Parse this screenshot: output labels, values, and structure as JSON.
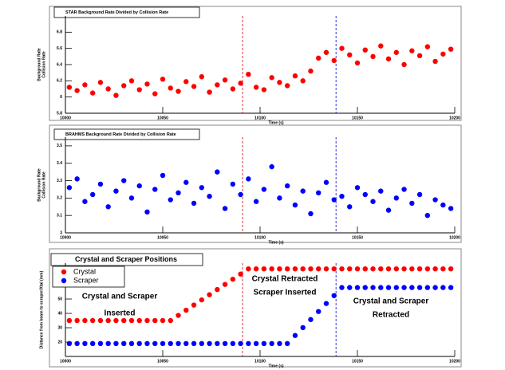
{
  "chart_data": [
    {
      "type": "scatter",
      "title": "STAR Background Rate Divided by Collision Rate",
      "ylabel": [
        "Background Rate",
        "Collision Rate"
      ],
      "xlabel": "Time (s)",
      "xlim": [
        10000,
        10200
      ],
      "xticks": [
        10000,
        10050,
        10100,
        10150,
        10200
      ],
      "ylim": [
        5.8,
        7
      ],
      "yticks": [
        5.8,
        6,
        6.2,
        6.4,
        6.6,
        6.8
      ],
      "vlines": [
        {
          "value": 10091,
          "color": "#e00000"
        },
        {
          "value": 10139,
          "color": "#0000e0"
        }
      ],
      "x": [
        10002,
        10006,
        10010,
        10014,
        10018,
        10022,
        10026,
        10030,
        10034,
        10038,
        10042,
        10046,
        10050,
        10054,
        10058,
        10062,
        10066,
        10070,
        10074,
        10078,
        10082,
        10086,
        10090,
        10094,
        10098,
        10102,
        10106,
        10110,
        10114,
        10118,
        10122,
        10126,
        10130,
        10134,
        10138,
        10142,
        10146,
        10150,
        10154,
        10158,
        10162,
        10166,
        10170,
        10174,
        10178,
        10182,
        10186,
        10190,
        10194,
        10198
      ],
      "series": [
        {
          "color": "#ff0000",
          "values": [
            6.12,
            6.08,
            6.15,
            6.05,
            6.18,
            6.1,
            6.02,
            6.14,
            6.2,
            6.09,
            6.16,
            6.04,
            6.22,
            6.11,
            6.07,
            6.19,
            6.13,
            6.25,
            6.06,
            6.15,
            6.21,
            6.1,
            6.17,
            6.28,
            6.12,
            6.09,
            6.24,
            6.18,
            6.14,
            6.26,
            6.2,
            6.32,
            6.48,
            6.55,
            6.45,
            6.6,
            6.52,
            6.42,
            6.58,
            6.5,
            6.63,
            6.47,
            6.55,
            6.4,
            6.57,
            6.51,
            6.62,
            6.44,
            6.53,
            6.59
          ]
        }
      ]
    },
    {
      "type": "scatter",
      "title": "BRAHMS Background Rate Divided by Collision Rate",
      "ylabel": [
        "Background Rate",
        "Collision Rate"
      ],
      "xlabel": "Time (s)",
      "xlim": [
        10000,
        10200
      ],
      "xticks": [
        10000,
        10050,
        10100,
        10150,
        10200
      ],
      "ylim": [
        3,
        3.55
      ],
      "yticks": [
        3,
        3.1,
        3.2,
        3.3,
        3.4,
        3.5
      ],
      "vlines": [
        {
          "value": 10091,
          "color": "#e00000"
        },
        {
          "value": 10139,
          "color": "#0000e0"
        }
      ],
      "x": [
        10002,
        10006,
        10010,
        10014,
        10018,
        10022,
        10026,
        10030,
        10034,
        10038,
        10042,
        10046,
        10050,
        10054,
        10058,
        10062,
        10066,
        10070,
        10074,
        10078,
        10082,
        10086,
        10090,
        10094,
        10098,
        10102,
        10106,
        10110,
        10114,
        10118,
        10122,
        10126,
        10130,
        10134,
        10138,
        10142,
        10146,
        10150,
        10154,
        10158,
        10162,
        10166,
        10170,
        10174,
        10178,
        10182,
        10186,
        10190,
        10194,
        10198
      ],
      "series": [
        {
          "color": "#0000ff",
          "values": [
            3.26,
            3.31,
            3.18,
            3.22,
            3.28,
            3.15,
            3.24,
            3.3,
            3.2,
            3.27,
            3.12,
            3.25,
            3.33,
            3.19,
            3.23,
            3.29,
            3.17,
            3.26,
            3.21,
            3.35,
            3.14,
            3.28,
            3.22,
            3.31,
            3.18,
            3.25,
            3.38,
            3.2,
            3.27,
            3.16,
            3.24,
            3.11,
            3.23,
            3.29,
            3.19,
            3.21,
            3.15,
            3.26,
            3.22,
            3.18,
            3.24,
            3.13,
            3.2,
            3.25,
            3.17,
            3.22,
            3.1,
            3.19,
            3.16,
            3.14
          ]
        }
      ]
    },
    {
      "type": "scatter",
      "title": "Crystal and Scraper Positions",
      "ylabel": [
        "Distance from beam to scraper/Xtal (mm)"
      ],
      "xlabel": "Time (s)",
      "xlim": [
        10000,
        10200
      ],
      "xticks": [
        10000,
        10050,
        10100,
        10150,
        10200
      ],
      "ylim": [
        10,
        75
      ],
      "yticks": [
        20,
        30,
        40,
        50,
        60,
        70
      ],
      "vlines": [
        {
          "value": 10091,
          "color": "#e00000"
        },
        {
          "value": 10139,
          "color": "#0000e0"
        }
      ],
      "annotations": [
        [
          "Crystal and Scraper",
          "Inserted"
        ],
        [
          "Crystal Retracted",
          "Scraper Inserted"
        ],
        [
          "Crystal and Scraper",
          "Retracted"
        ]
      ],
      "x": [
        10002,
        10006,
        10010,
        10014,
        10018,
        10022,
        10026,
        10030,
        10034,
        10038,
        10042,
        10046,
        10050,
        10054,
        10058,
        10062,
        10066,
        10070,
        10074,
        10078,
        10082,
        10086,
        10090,
        10094,
        10098,
        10102,
        10106,
        10110,
        10114,
        10118,
        10122,
        10126,
        10130,
        10134,
        10138,
        10142,
        10146,
        10150,
        10154,
        10158,
        10162,
        10166,
        10170,
        10174,
        10178,
        10182,
        10186,
        10190,
        10194,
        10198
      ],
      "series": [
        {
          "name": "Crystal",
          "color": "#ff0000",
          "values": [
            35,
            35,
            35,
            35,
            35,
            35,
            35,
            35,
            35,
            35,
            35,
            35,
            35,
            35,
            38.6,
            42.2,
            45.8,
            49.4,
            53,
            56.6,
            60.2,
            63.8,
            67.4,
            71,
            71,
            71,
            71,
            71,
            71,
            71,
            71,
            71,
            71,
            71,
            71,
            71,
            71,
            71,
            71,
            71,
            71,
            71,
            71,
            71,
            71,
            71,
            71,
            71,
            71,
            71
          ]
        },
        {
          "name": "Scraper",
          "color": "#0000ff",
          "values": [
            19,
            19,
            19,
            19,
            19,
            19,
            19,
            19,
            19,
            19,
            19,
            19,
            19,
            19,
            19,
            19,
            19,
            19,
            19,
            19,
            19,
            19,
            19,
            19,
            19,
            19,
            19,
            19,
            19,
            24.6,
            30.1,
            35.7,
            41.3,
            46.9,
            52.4,
            58,
            58,
            58,
            58,
            58,
            58,
            58,
            58,
            58,
            58,
            58,
            58,
            58,
            58,
            58
          ]
        }
      ]
    }
  ]
}
